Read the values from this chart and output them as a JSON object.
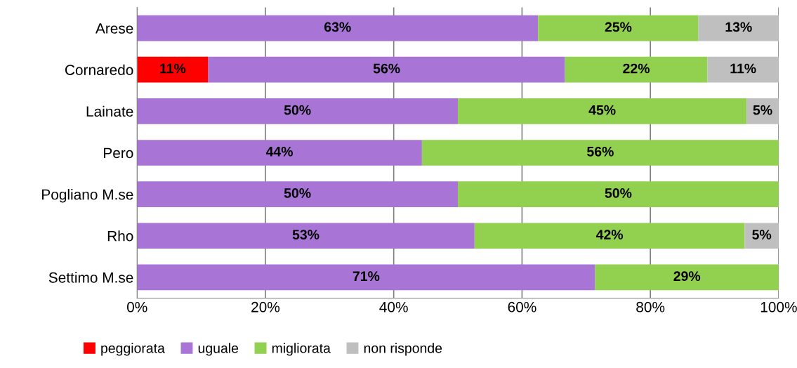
{
  "chart_data": {
    "type": "bar",
    "orientation": "horizontal",
    "stacked": true,
    "categories": [
      "Arese",
      "Cornaredo",
      "Lainate",
      "Pero",
      "Pogliano M.se",
      "Rho",
      "Settimo M.se"
    ],
    "series": [
      {
        "name": "peggiorata",
        "color": "#ff0000",
        "values": [
          null,
          11.1,
          null,
          null,
          null,
          null,
          null
        ],
        "value_labels": [
          null,
          "11%",
          null,
          null,
          null,
          null,
          null
        ]
      },
      {
        "name": "uguale",
        "color": "#a875d6",
        "values": [
          62.5,
          55.6,
          50,
          44.4,
          50,
          52.6,
          71.4
        ],
        "value_labels": [
          "63%",
          "56%",
          "50%",
          "44%",
          "50%",
          "53%",
          "71%"
        ]
      },
      {
        "name": "migliorata",
        "color": "#92d050",
        "values": [
          25,
          22.2,
          45,
          55.6,
          50,
          42.1,
          28.6
        ],
        "value_labels": [
          "25%",
          "22%",
          "45%",
          "56%",
          "50%",
          "42%",
          "29%"
        ]
      },
      {
        "name": "non risponde",
        "color": "#bfbfbf",
        "values": [
          12.5,
          11.1,
          5,
          null,
          null,
          5.3,
          null
        ],
        "value_labels": [
          "13%",
          "11%",
          "5%",
          null,
          null,
          "5%",
          null
        ]
      }
    ],
    "xlim": [
      0,
      100
    ],
    "xticks": [
      {
        "value": 0,
        "label": "0%"
      },
      {
        "value": 20,
        "label": "20%"
      },
      {
        "value": 40,
        "label": "40%"
      },
      {
        "value": 60,
        "label": "60%"
      },
      {
        "value": 80,
        "label": "80%"
      },
      {
        "value": 100,
        "label": "100%"
      }
    ],
    "grid": "x",
    "legend": "bottom left"
  }
}
